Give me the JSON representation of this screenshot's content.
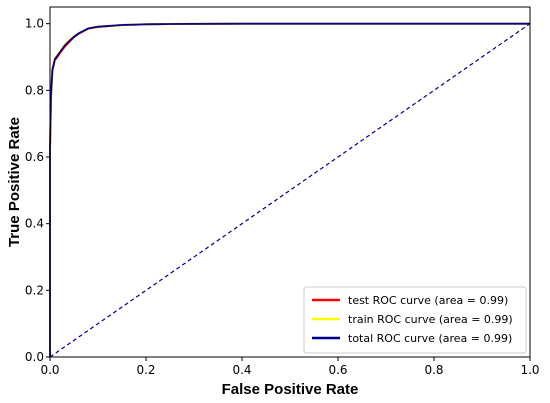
{
  "chart_data": {
    "type": "line",
    "title": "",
    "xlabel": "False Positive Rate",
    "ylabel": "True Positive Rate",
    "xlim": [
      0.0,
      1.0
    ],
    "ylim": [
      0.0,
      1.05
    ],
    "x_ticks": [
      "0.0",
      "0.2",
      "0.4",
      "0.6",
      "0.8",
      "1.0"
    ],
    "y_ticks": [
      "0.0",
      "0.2",
      "0.4",
      "0.6",
      "0.8",
      "1.0"
    ],
    "x_tick_values": [
      0.0,
      0.2,
      0.4,
      0.6,
      0.8,
      1.0
    ],
    "y_tick_values": [
      0.0,
      0.2,
      0.4,
      0.6,
      0.8,
      1.0
    ],
    "grid": false,
    "legend_position": "bottom-right",
    "series": [
      {
        "name": "test ROC curve (area = 0.99)",
        "color": "#ff0000",
        "x": [
          0.0,
          0.0,
          0.002,
          0.005,
          0.01,
          0.015,
          0.02,
          0.03,
          0.04,
          0.05,
          0.06,
          0.08,
          0.1,
          0.15,
          0.2,
          0.25,
          0.4,
          0.6,
          0.8,
          1.0
        ],
        "y": [
          0.0,
          0.62,
          0.78,
          0.86,
          0.89,
          0.9,
          0.91,
          0.93,
          0.945,
          0.96,
          0.97,
          0.985,
          0.99,
          0.996,
          0.998,
          0.999,
          1.0,
          1.0,
          1.0,
          1.0
        ]
      },
      {
        "name": "train ROC curve (area = 0.99)",
        "color": "#ffff00",
        "x": [
          0.0,
          0.0,
          0.002,
          0.005,
          0.01,
          0.015,
          0.02,
          0.03,
          0.04,
          0.05,
          0.06,
          0.08,
          0.1,
          0.15,
          0.2,
          0.25,
          0.4,
          0.6,
          0.8,
          1.0
        ],
        "y": [
          0.0,
          0.64,
          0.79,
          0.865,
          0.895,
          0.905,
          0.915,
          0.935,
          0.95,
          0.962,
          0.972,
          0.986,
          0.991,
          0.996,
          0.998,
          0.999,
          1.0,
          1.0,
          1.0,
          1.0
        ]
      },
      {
        "name": "total ROC curve (area = 0.99)",
        "color": "#00008b",
        "x": [
          0.0,
          0.0,
          0.002,
          0.005,
          0.01,
          0.015,
          0.02,
          0.03,
          0.04,
          0.05,
          0.06,
          0.08,
          0.1,
          0.15,
          0.2,
          0.25,
          0.4,
          0.6,
          0.8,
          1.0
        ],
        "y": [
          0.0,
          0.63,
          0.785,
          0.862,
          0.893,
          0.903,
          0.913,
          0.933,
          0.948,
          0.961,
          0.971,
          0.986,
          0.991,
          0.996,
          0.998,
          0.999,
          1.0,
          1.0,
          1.0,
          1.0
        ]
      }
    ],
    "reference_line": {
      "style": "dashed",
      "color": "#00008b",
      "x": [
        0.0,
        1.0
      ],
      "y": [
        0.0,
        1.0
      ]
    }
  }
}
